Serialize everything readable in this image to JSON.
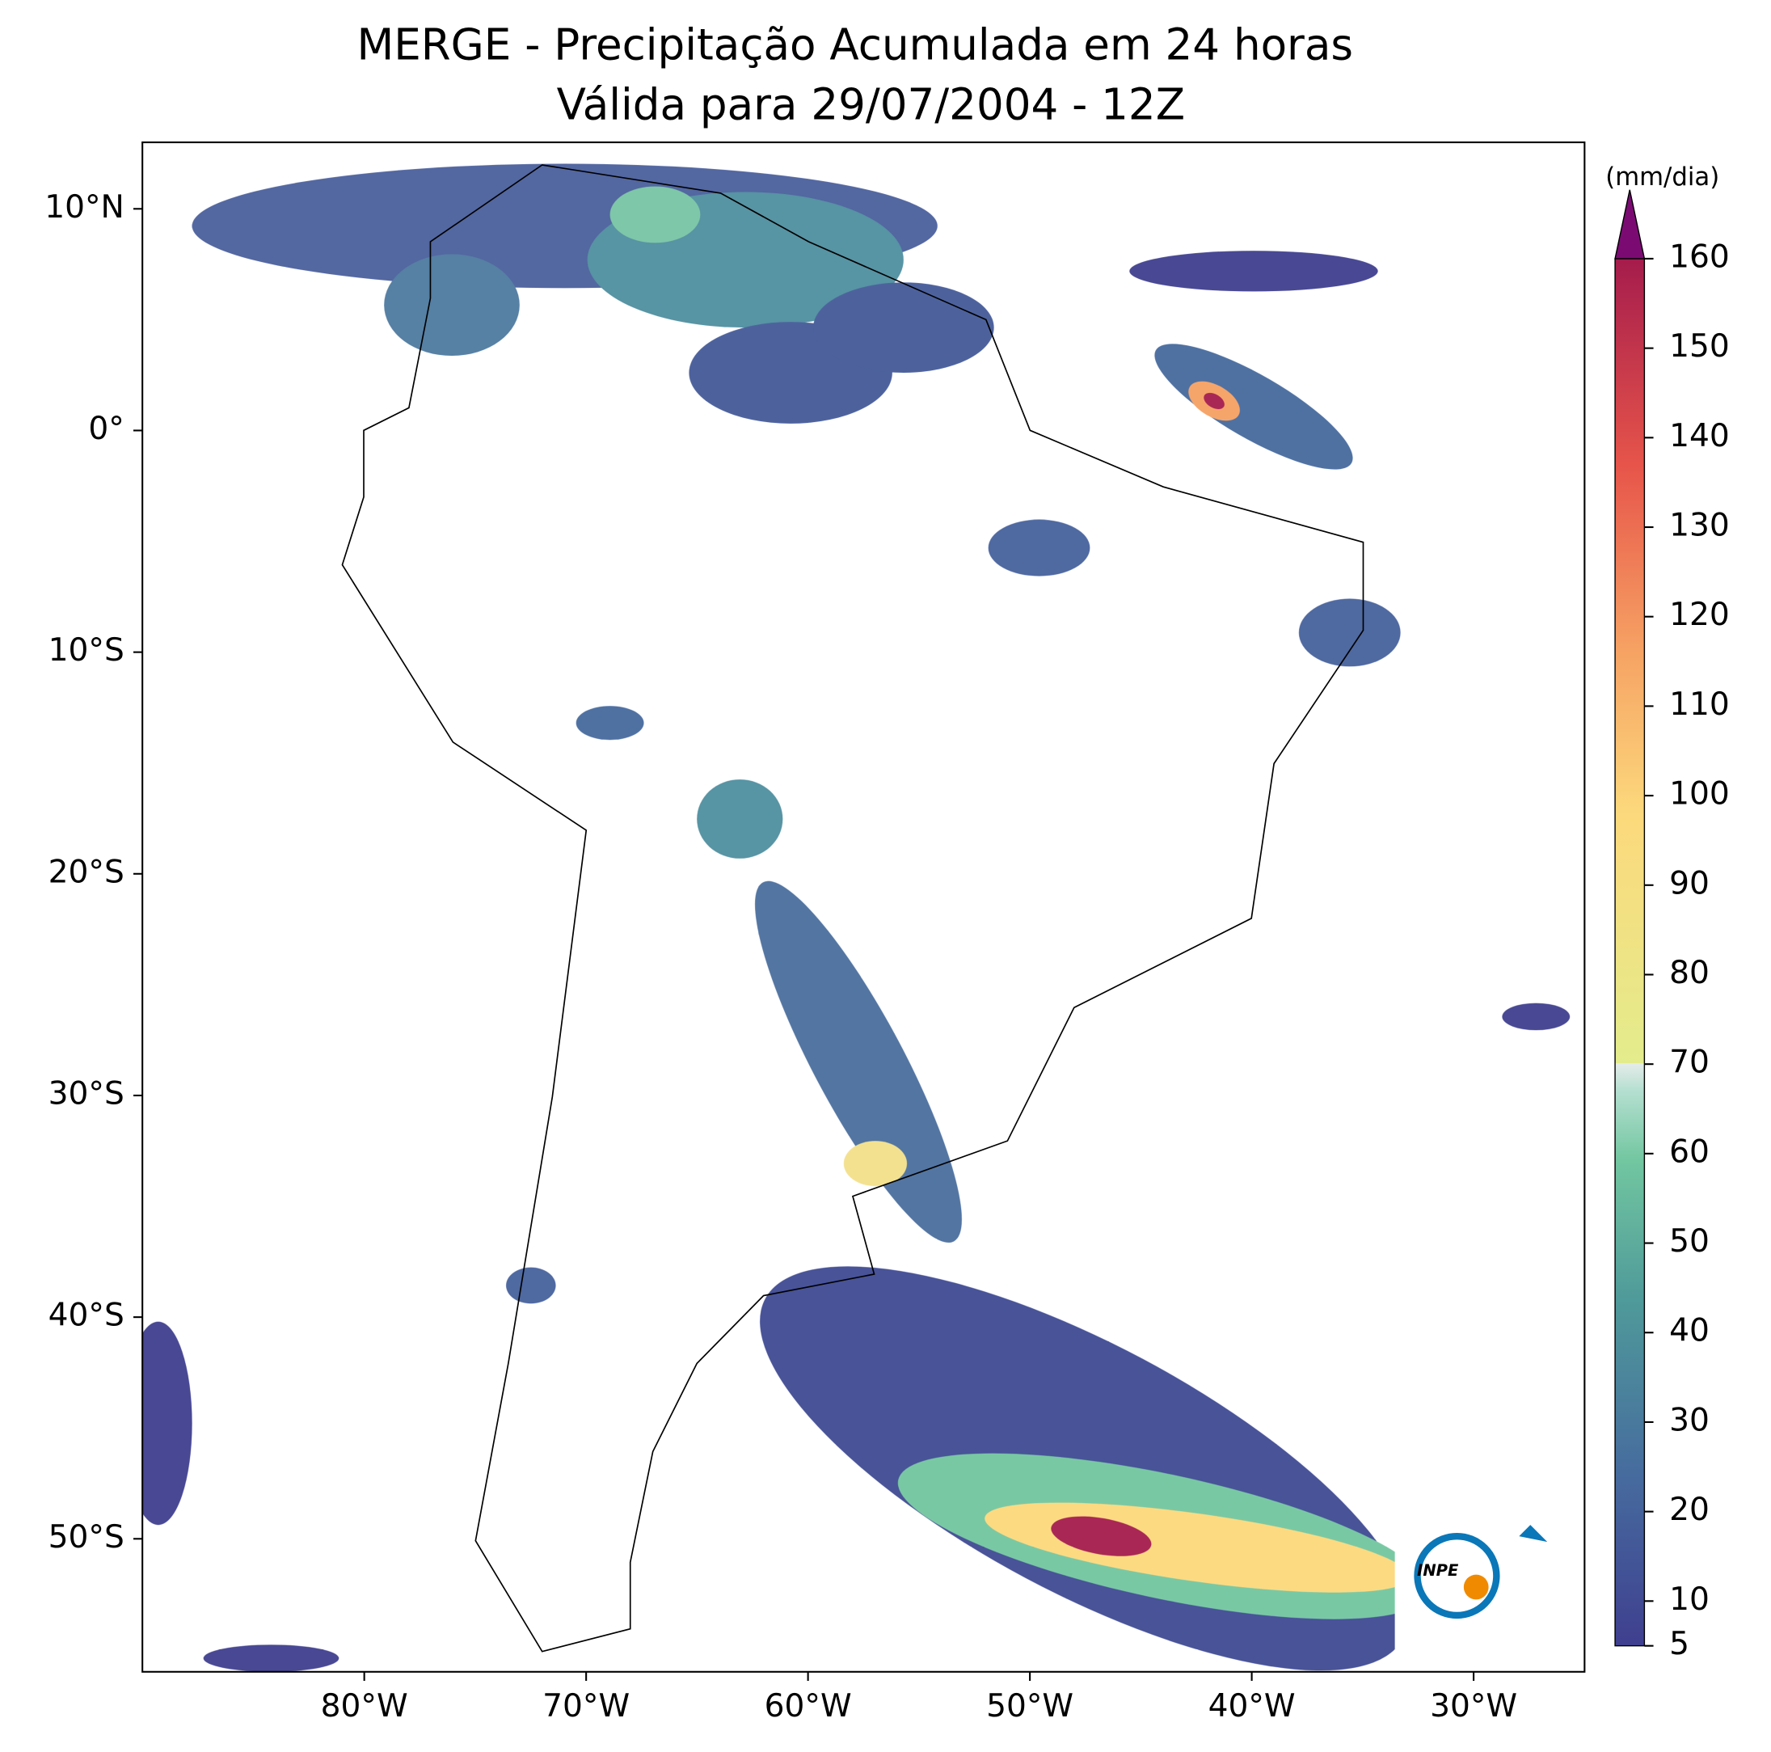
{
  "title": [
    "MERGE - Precipitação Acumulada em 24 horas",
    "Válida para 29/07/2004 - 12Z"
  ],
  "map": {
    "xlim": [
      -90,
      -25
    ],
    "ylim": [
      -56,
      13
    ],
    "xticks": [
      {
        "value": -80,
        "label": "80°W"
      },
      {
        "value": -70,
        "label": "70°W"
      },
      {
        "value": -60,
        "label": "60°W"
      },
      {
        "value": -50,
        "label": "50°W"
      },
      {
        "value": -40,
        "label": "40°W"
      },
      {
        "value": -30,
        "label": "30°W"
      }
    ],
    "yticks": [
      {
        "value": 10,
        "label": "10°N"
      },
      {
        "value": 0,
        "label": "0°"
      },
      {
        "value": -10,
        "label": "10°S"
      },
      {
        "value": -20,
        "label": "20°S"
      },
      {
        "value": -30,
        "label": "30°S"
      },
      {
        "value": -40,
        "label": "40°S"
      },
      {
        "value": -50,
        "label": "50°S"
      }
    ]
  },
  "colorbar": {
    "unit": "(mm/dia)",
    "lim": [
      5,
      160
    ],
    "ticks": [
      5,
      10,
      20,
      30,
      40,
      50,
      60,
      70,
      80,
      90,
      100,
      110,
      120,
      130,
      140,
      150,
      160
    ]
  },
  "logo": "INPE"
}
